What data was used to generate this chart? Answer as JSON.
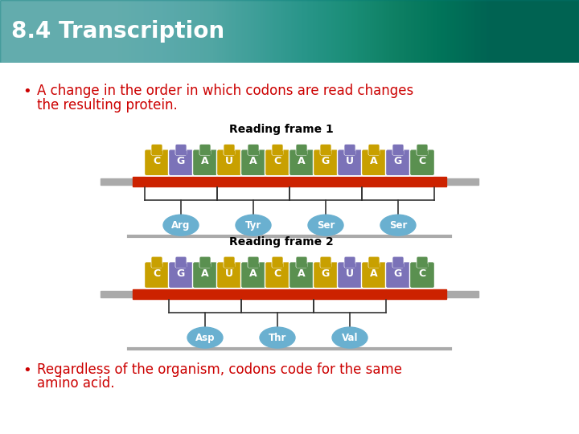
{
  "title": "8.4 Transcription",
  "title_color": "#ffffff",
  "bg_color": "#ffffff",
  "bullet_color": "#cc0000",
  "rf1_label": "Reading frame 1",
  "rf2_label": "Reading frame 2",
  "rna_seq": [
    "C",
    "G",
    "A",
    "U",
    "A",
    "C",
    "A",
    "G",
    "U",
    "A",
    "G",
    "C"
  ],
  "aa1": [
    "Arg",
    "Tyr",
    "Ser",
    "Ser"
  ],
  "aa2": [
    "Asp",
    "Thr",
    "Val"
  ],
  "codon_colors": [
    "#c8a000",
    "#7b72b8",
    "#5a9050",
    "#c8a000",
    "#5a9050",
    "#c8a000",
    "#5a9050",
    "#c8a000",
    "#7b72b8",
    "#c8a000",
    "#7b72b8",
    "#5a9050"
  ],
  "aa_color": "#6ab0d0",
  "strand_color": "#cc2200",
  "bracket_color": "#333333"
}
